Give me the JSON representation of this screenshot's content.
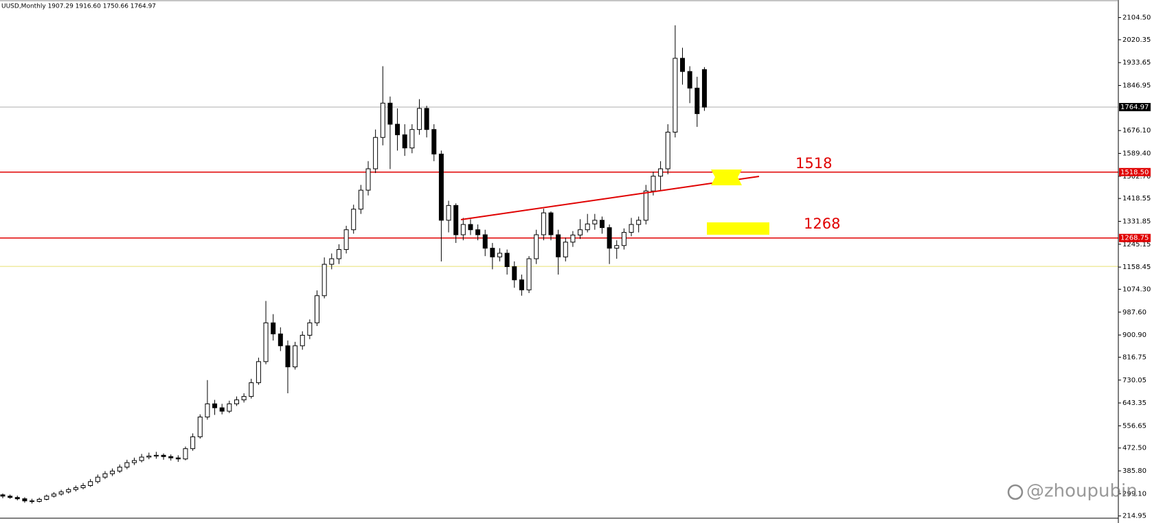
{
  "chart_data": {
    "type": "candlestick",
    "title": "UUSD,Monthly 1907.29 1916.60 1750.66 1764.97",
    "up_color": "#ffffff",
    "down_color": "#000000",
    "open": [
      295,
      290,
      285,
      280,
      272,
      270,
      278,
      290,
      298,
      306,
      315,
      322,
      330,
      345,
      362,
      375,
      385,
      400,
      417,
      425,
      438,
      442,
      445,
      440,
      435,
      431,
      470,
      515,
      590,
      640,
      625,
      612,
      640,
      655,
      668,
      720,
      800,
      947,
      905,
      860,
      780,
      860,
      900,
      947,
      1050,
      1169,
      1190,
      1225,
      1300,
      1378,
      1450,
      1531,
      1650,
      1780,
      1700,
      1660,
      1610,
      1680,
      1760,
      1680,
      1587,
      1336,
      1392,
      1281,
      1320,
      1300,
      1281,
      1230,
      1197,
      1211,
      1160,
      1110,
      1072,
      1190,
      1281,
      1364,
      1281,
      1197,
      1253,
      1280,
      1300,
      1322,
      1336,
      1308,
      1230,
      1240,
      1290,
      1320,
      1336,
      1447,
      1503,
      1531,
      1670,
      1950,
      1900,
      1837,
      1907.29
    ],
    "high": [
      300,
      296,
      292,
      286,
      280,
      284,
      296,
      305,
      314,
      322,
      330,
      340,
      355,
      372,
      385,
      395,
      410,
      428,
      436,
      450,
      455,
      458,
      452,
      448,
      445,
      478,
      528,
      600,
      730,
      655,
      640,
      652,
      668,
      680,
      735,
      815,
      1030,
      980,
      930,
      880,
      875,
      915,
      960,
      1070,
      1195,
      1210,
      1245,
      1315,
      1395,
      1470,
      1560,
      1680,
      1920,
      1805,
      1760,
      1700,
      1700,
      1795,
      1770,
      1700,
      1600,
      1410,
      1400,
      1345,
      1340,
      1320,
      1300,
      1250,
      1230,
      1225,
      1180,
      1130,
      1200,
      1300,
      1380,
      1370,
      1300,
      1270,
      1295,
      1340,
      1360,
      1360,
      1350,
      1320,
      1260,
      1305,
      1345,
      1350,
      1470,
      1520,
      1560,
      1700,
      2075,
      1990,
      1920,
      1880,
      1916.6
    ],
    "low": [
      282,
      280,
      274,
      265,
      262,
      266,
      274,
      285,
      292,
      300,
      308,
      316,
      325,
      338,
      355,
      366,
      378,
      392,
      408,
      418,
      430,
      432,
      428,
      425,
      420,
      426,
      462,
      508,
      580,
      598,
      600,
      605,
      632,
      645,
      660,
      712,
      790,
      880,
      840,
      680,
      770,
      845,
      885,
      935,
      1040,
      1150,
      1170,
      1210,
      1285,
      1360,
      1430,
      1515,
      1620,
      1530,
      1600,
      1580,
      1590,
      1660,
      1650,
      1560,
      1180,
      1290,
      1250,
      1260,
      1280,
      1260,
      1200,
      1150,
      1180,
      1130,
      1080,
      1050,
      1060,
      1170,
      1260,
      1260,
      1130,
      1180,
      1235,
      1265,
      1290,
      1300,
      1285,
      1170,
      1190,
      1225,
      1275,
      1290,
      1320,
      1430,
      1450,
      1510,
      1650,
      1850,
      1780,
      1690,
      1750.66
    ],
    "close": [
      290,
      285,
      280,
      272,
      270,
      278,
      290,
      298,
      306,
      315,
      322,
      330,
      345,
      362,
      375,
      385,
      400,
      417,
      425,
      438,
      442,
      445,
      440,
      435,
      431,
      470,
      515,
      590,
      640,
      625,
      612,
      640,
      655,
      668,
      720,
      800,
      947,
      905,
      860,
      780,
      860,
      900,
      947,
      1050,
      1169,
      1190,
      1225,
      1300,
      1378,
      1450,
      1531,
      1650,
      1780,
      1700,
      1660,
      1610,
      1680,
      1760,
      1680,
      1587,
      1336,
      1392,
      1281,
      1320,
      1300,
      1281,
      1230,
      1197,
      1211,
      1160,
      1110,
      1072,
      1190,
      1281,
      1364,
      1281,
      1197,
      1253,
      1280,
      1300,
      1322,
      1336,
      1308,
      1230,
      1240,
      1290,
      1320,
      1336,
      1447,
      1503,
      1531,
      1670,
      1950,
      1900,
      1837,
      1740,
      1764.97
    ],
    "ylim": [
      209,
      2171
    ],
    "yticks": [
      {
        "value": 2104.5,
        "label": "2104.50"
      },
      2020.35,
      1933.65,
      1846.95,
      {
        "value": 1676.1,
        "label": "1676.10"
      },
      {
        "value": 1589.4,
        "label": "1589.40"
      },
      {
        "value": 1502.7,
        "label": "1502.70"
      },
      1418.55,
      1331.85,
      1245.15,
      1158.45,
      {
        "value": 1074.3,
        "label": "1074.30"
      },
      {
        "value": 987.6,
        "label": "987.60"
      },
      {
        "value": 900.9,
        "label": "900.90"
      },
      816.75,
      730.05,
      643.35,
      556.65,
      {
        "value": 472.5,
        "label": "472.50"
      },
      {
        "value": 385.8,
        "label": "385.80"
      },
      {
        "value": 299.1,
        "label": "299.10"
      },
      214.95
    ],
    "levels": [
      {
        "value": 1764.97,
        "label": "1764.97",
        "color": "#c8c8c8",
        "label_color": "#000000"
      },
      {
        "value": 1518.5,
        "label": "1518.50",
        "color": "#e00000",
        "label_color": "#e00000"
      },
      {
        "value": 1268.75,
        "label": "1268.75",
        "color": "#e00000",
        "label_color": "#e00000"
      },
      {
        "value": 1161,
        "color": "#e8e070"
      }
    ],
    "annotations": [
      "1518",
      "1268"
    ],
    "watermark": "@zhoupubin"
  }
}
